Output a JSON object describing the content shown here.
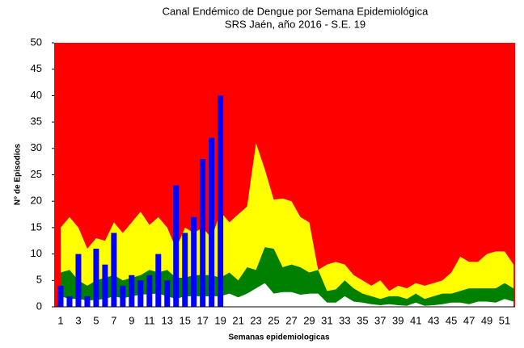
{
  "chart_data": {
    "type": "endemic_channel",
    "title": "Canal Endémico de Dengue por Semana Epidemiológica",
    "subtitle": "SRS Jaén, año 2016 - S.E.  19",
    "y_label": "N° de Episodios",
    "x_label": "Semanas epidemiologicas",
    "background_color": "#ff0000",
    "categories": [
      1,
      null,
      3,
      null,
      5,
      null,
      7,
      null,
      9,
      null,
      11,
      null,
      13,
      null,
      15,
      null,
      17,
      null,
      19,
      null,
      21,
      null,
      23,
      null,
      25,
      null,
      27,
      null,
      29,
      null,
      31,
      null,
      33,
      null,
      35,
      null,
      37,
      null,
      39,
      null,
      41,
      null,
      43,
      null,
      45,
      null,
      47,
      null,
      49,
      null,
      51,
      null
    ],
    "series": [
      {
        "kind": "area",
        "color": "#ffff00",
        "values": [
          15,
          17,
          15,
          11,
          13,
          12.5,
          16,
          14,
          16,
          18,
          15.5,
          17,
          15,
          11,
          15,
          14,
          15,
          13,
          18,
          16,
          17.5,
          19,
          31,
          26,
          20.3,
          20.5,
          20,
          17,
          16,
          7,
          8,
          8.5,
          8,
          6,
          5,
          4,
          5,
          3,
          4,
          3.5,
          4.5,
          4,
          4.5,
          5,
          6.5,
          9.5,
          8.5,
          8.5,
          10,
          10.5,
          10.5,
          8
        ]
      },
      {
        "kind": "area",
        "color": "#008000",
        "values": [
          6.5,
          7,
          5,
          4,
          5,
          5.5,
          6,
          5,
          5.5,
          6,
          7,
          6.5,
          7,
          5.5,
          5.5,
          6,
          6,
          6,
          5.5,
          6.5,
          5,
          7.5,
          7,
          11.3,
          11,
          7.5,
          8,
          7.5,
          6.5,
          7,
          3,
          3.3,
          5,
          3.5,
          2.5,
          2,
          1.5,
          2,
          2,
          1.5,
          2.5,
          1.5,
          2,
          2.5,
          2.5,
          3,
          3.5,
          3.5,
          3.5,
          3.5,
          4.5,
          3.5
        ]
      },
      {
        "kind": "area",
        "color": "#ffffff",
        "values": [
          2,
          1.5,
          1.5,
          1.2,
          1.3,
          1.5,
          2,
          1.6,
          2,
          2.3,
          2.4,
          2.5,
          2,
          1.5,
          2,
          2,
          2,
          2,
          2,
          2.5,
          1.8,
          2.5,
          3.5,
          4.5,
          2.5,
          2.8,
          2.8,
          2.3,
          2.5,
          2.5,
          0.8,
          0.8,
          2,
          1,
          0.8,
          0.5,
          0.3,
          0.5,
          0.3,
          0.2,
          0.8,
          0.2,
          0.3,
          0.5,
          0.8,
          0.8,
          0.5,
          1,
          1,
          0.8,
          1.5,
          1
        ]
      },
      {
        "kind": "bar",
        "color": "#0000ff",
        "values": [
          4,
          2,
          10,
          2,
          11,
          8,
          14,
          4,
          6,
          5,
          6,
          10,
          5,
          23,
          14,
          17,
          28,
          32,
          40,
          null,
          null,
          null,
          null,
          null,
          null,
          null,
          null,
          null,
          null,
          null,
          null,
          null,
          null,
          null,
          null,
          null,
          null,
          null,
          null,
          null,
          null,
          null,
          null,
          null,
          null,
          null,
          null,
          null,
          null,
          null,
          null,
          null
        ]
      }
    ],
    "ylim": [
      0,
      50
    ],
    "yticks": [
      0,
      5,
      10,
      15,
      20,
      25,
      30,
      35,
      40,
      45,
      50
    ]
  }
}
